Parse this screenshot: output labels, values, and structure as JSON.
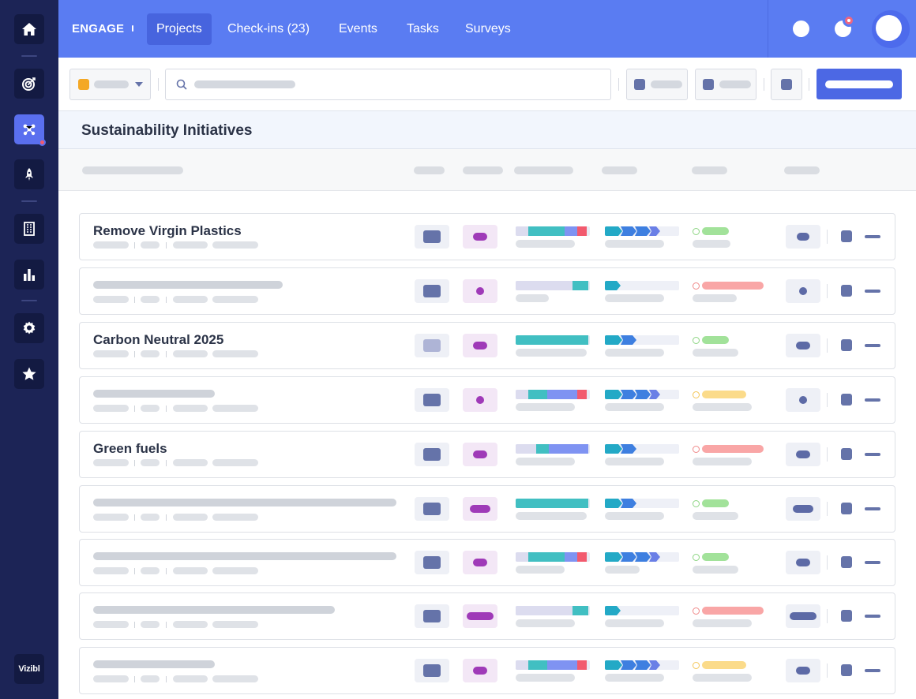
{
  "app": {
    "brand": "ENGAGE",
    "logo_text": "Vizibl",
    "accent": "#5a7cf2",
    "sidebar_color": "#1c2456"
  },
  "sidebar": {
    "items": [
      {
        "icon": "home-icon"
      },
      {
        "icon": "target-icon"
      },
      {
        "icon": "network-icon",
        "active": true,
        "has_notification": true
      },
      {
        "icon": "rocket-icon"
      },
      {
        "icon": "building-icon"
      },
      {
        "icon": "bar-chart-icon"
      },
      {
        "icon": "gear-icon"
      },
      {
        "icon": "star-icon"
      }
    ]
  },
  "nav": {
    "tabs": [
      {
        "label": "Projects",
        "active": true
      },
      {
        "label": "Check-ins (23)"
      },
      {
        "label": "Events"
      },
      {
        "label": "Tasks"
      },
      {
        "label": "Surveys"
      }
    ]
  },
  "toolbar": {
    "filter_color": "#f4a825"
  },
  "page": {
    "title": "Sustainability Initiatives"
  },
  "rows": [
    {
      "title": "Remove Virgin Plastics"
    },
    {
      "title": ""
    },
    {
      "title": "Carbon Neutral 2025"
    },
    {
      "title": ""
    },
    {
      "title": "Green fuels"
    },
    {
      "title": ""
    },
    {
      "title": ""
    },
    {
      "title": ""
    },
    {
      "title": ""
    }
  ]
}
